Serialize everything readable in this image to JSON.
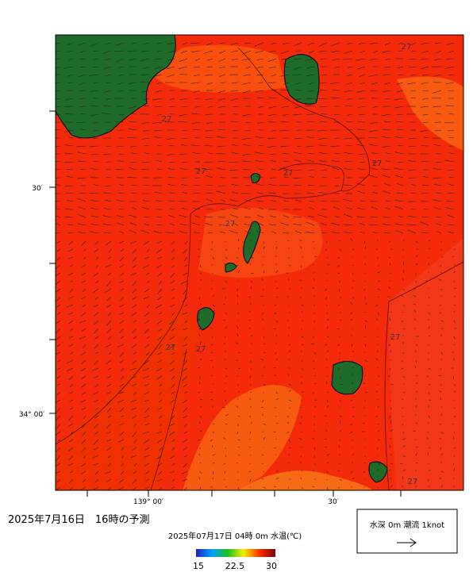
{
  "header": {
    "title": "2025年7月16日　16時の予測",
    "subtitle": "2025年07月17日 04時 0m 水温(℃)"
  },
  "axes": {
    "y_labels": [
      "30′",
      "34° 00′"
    ],
    "x_labels": [
      "139° 00′",
      "30′"
    ]
  },
  "colorbar": {
    "range": [
      15,
      30
    ],
    "ticks": [
      15,
      22.5,
      30
    ]
  },
  "legend": {
    "label": "水深 0m 潮流 1knot"
  },
  "contour_labels": [
    "27",
    "27",
    "27",
    "27",
    "27",
    "27",
    "27",
    "27",
    "27",
    "27"
  ]
}
